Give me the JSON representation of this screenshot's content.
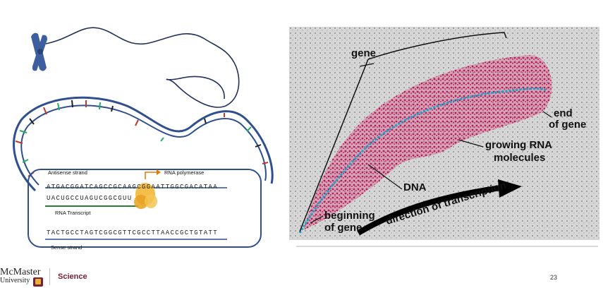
{
  "left_figure": {
    "antisense_label": "Antisense strand",
    "polymerase_label": "RNA polymerase",
    "antisense_seq": "ATGACGGATCAGCCGCAAGCGGAATTGGCGACATAA",
    "rna_seq": "UACUGCCUAGUCGGCGUU",
    "transcript_label": "RNA Transcript",
    "sense_seq": "TACTGCCTAGTCGGCGTTCGCCTTAACCGCTGTATT",
    "sense_label": "Sense strand"
  },
  "photo": {
    "labels": {
      "gene": "gene",
      "end_of_gene": [
        "end",
        "of gene"
      ],
      "growing_rna": [
        "growing RNA",
        "molecules"
      ],
      "dna": "DNA",
      "direction": "direction of transcription",
      "beginning_of_gene": [
        "beginning",
        "of gene"
      ]
    }
  },
  "footer": {
    "logo_line1": "McMaster",
    "logo_line2": "University",
    "faculty": "Science",
    "page_number": "23"
  },
  "colors": {
    "dna_strand": "#2f4f8f",
    "rna_pink": "#c2185b",
    "dna_cyan": "#1aa3c9",
    "polymerase": "#f2b735",
    "brand_maroon": "#7a1f35"
  }
}
